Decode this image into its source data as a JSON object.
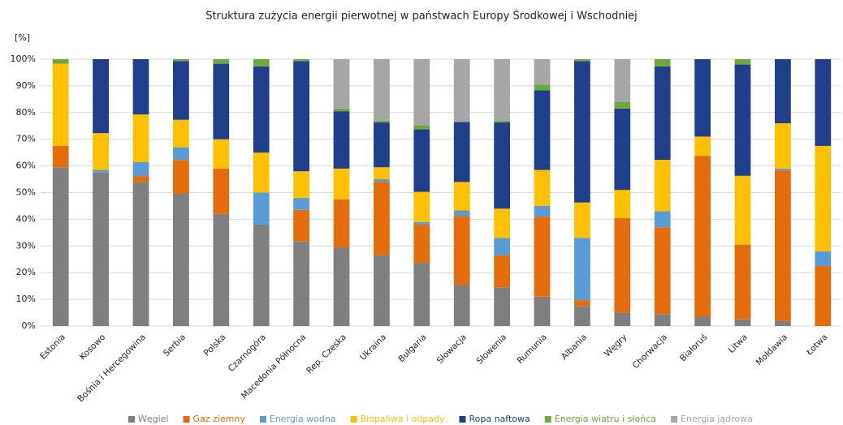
{
  "chart_data": {
    "type": "stacked_bar",
    "title": "Struktura zużycia energii pierwotnej w państwach Europy Środkowej i Wschodniej",
    "y_label": "[%]",
    "categories": [
      "Estonia",
      "Kosowo",
      "Bośnia i Hercegowina",
      "Serbia",
      "Polska",
      "Czarnogóra",
      "Macedonia Północna",
      "Rep. Czeska",
      "Ukraina",
      "Bułgaria",
      "Słowacja",
      "Słowenia",
      "Rumunia",
      "Albania",
      "Węgry",
      "Chorwacja",
      "Białoruś",
      "Litwa",
      "Mołdawia",
      "Łotwa"
    ],
    "series": [
      {
        "name": "Węgiel",
        "color": "#7f7f7f",
        "values": [
          59.5,
          57.5,
          54,
          49.7,
          42,
          38,
          31.7,
          29.5,
          26.5,
          23.7,
          15.5,
          14.5,
          11,
          7.5,
          5,
          4.5,
          3.5,
          2.5,
          2,
          0
        ]
      },
      {
        "name": "Gaz ziemny",
        "color": "#e46c0a",
        "values": [
          8,
          0,
          2.2,
          12.5,
          17,
          0,
          11.8,
          18,
          27.5,
          14.3,
          25.8,
          12,
          30,
          2.2,
          35.5,
          32.5,
          60.3,
          28,
          56.3,
          22.5
        ]
      },
      {
        "name": "Energia wodna",
        "color": "#5b9bd5",
        "values": [
          0,
          1,
          5.3,
          4.8,
          0,
          12,
          4.5,
          0,
          1,
          1,
          2,
          6.5,
          4,
          23.3,
          0,
          6,
          0,
          0,
          0.7,
          5.5
        ]
      },
      {
        "name": "Biopaliwa i odpady",
        "color": "#ffc000",
        "values": [
          30.8,
          13.8,
          17.8,
          10.3,
          11,
          15,
          10,
          11.5,
          4.5,
          11.3,
          10.7,
          11,
          13.5,
          13.3,
          10.5,
          19.3,
          7.2,
          25.8,
          17,
          39.5
        ]
      },
      {
        "name": "Ropa naftowa",
        "color": "#203f8a",
        "values": [
          0,
          27.7,
          20.7,
          22,
          28.3,
          32.3,
          41.3,
          21.5,
          16.8,
          23.4,
          22.5,
          32.3,
          29.8,
          53,
          30.5,
          35,
          29,
          41.7,
          24,
          32.5
        ]
      },
      {
        "name": "Energia wiatru i słońca",
        "color": "#6aaa3a",
        "values": [
          1.7,
          0,
          0,
          0.7,
          1.7,
          2.7,
          0.7,
          1,
          0.7,
          1.6,
          0,
          0.7,
          2.2,
          0.7,
          2.5,
          2.7,
          0,
          2,
          0,
          0
        ]
      },
      {
        "name": "Energia jądrowa",
        "color": "#a6a6a6",
        "values": [
          0,
          0,
          0,
          0,
          0,
          0,
          0,
          18.5,
          23,
          24.7,
          23.5,
          23,
          9.5,
          0,
          16,
          0,
          0,
          0,
          0,
          0
        ]
      }
    ],
    "ylim": [
      0,
      100
    ],
    "yticks": [
      {
        "value": 0,
        "label": "0%"
      },
      {
        "value": 10,
        "label": "10%"
      },
      {
        "value": 20,
        "label": "20%"
      },
      {
        "value": 30,
        "label": "30%"
      },
      {
        "value": 40,
        "label": "40%"
      },
      {
        "value": 50,
        "label": "50%"
      },
      {
        "value": 60,
        "label": "60%"
      },
      {
        "value": 70,
        "label": "70%"
      },
      {
        "value": 80,
        "label": "80%"
      },
      {
        "value": 90,
        "label": "90%"
      },
      {
        "value": 100,
        "label": "100%"
      }
    ],
    "grid": true,
    "legend": "bottom"
  }
}
